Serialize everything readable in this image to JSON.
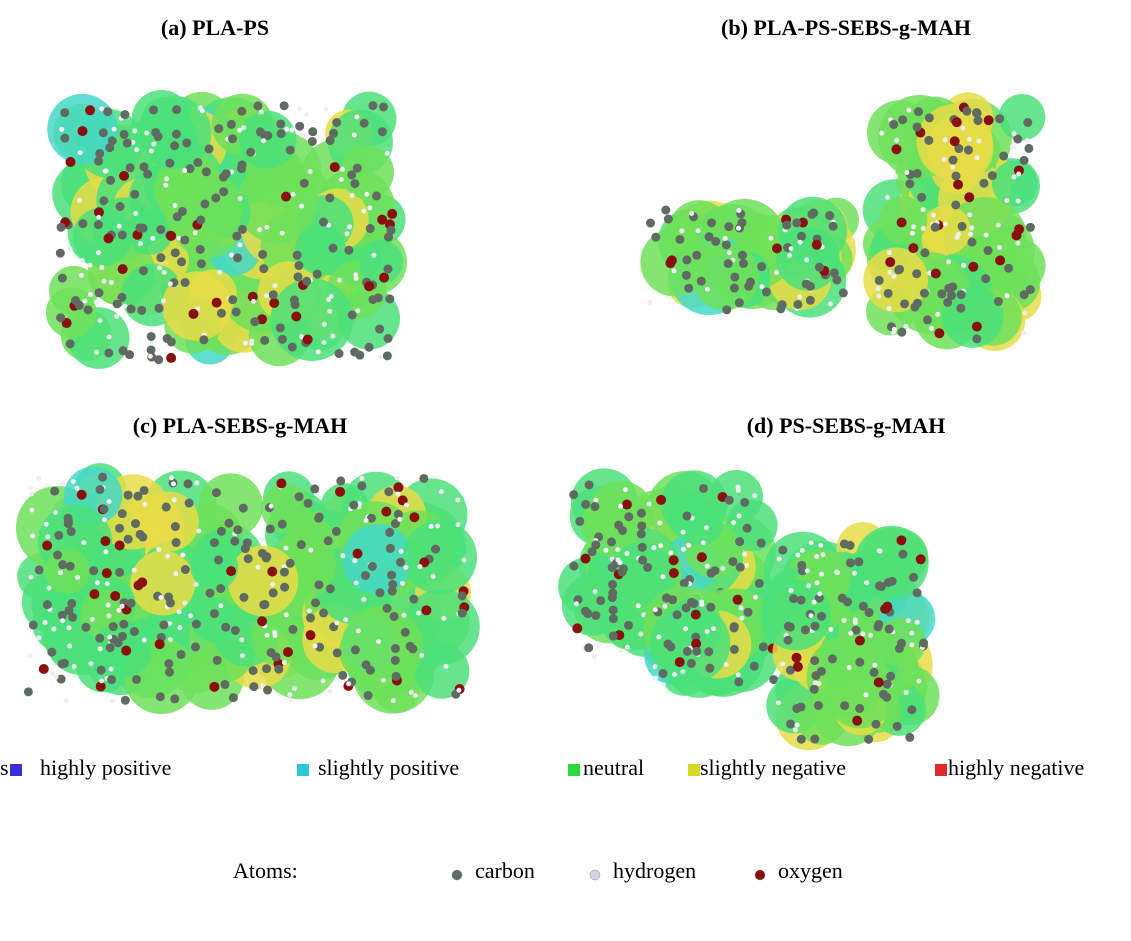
{
  "panels": [
    {
      "label": "(a) PLA-PS"
    },
    {
      "label": "(b) PLA-PS-SEBS-g-MAH"
    },
    {
      "label": "(c) PLA-SEBS-g-MAH"
    },
    {
      "label": "(d) PS-SEBS-g-MAH"
    }
  ],
  "colors": {
    "label": "s:",
    "items": [
      {
        "label": "highly positive",
        "color": "#3a2fd8"
      },
      {
        "label": "slightly positive",
        "color": "#2cc8d8"
      },
      {
        "label": "neutral",
        "color": "#2ed83a"
      },
      {
        "label": "slightly negative",
        "color": "#d8d82a"
      },
      {
        "label": "highly negative",
        "color": "#e02a2a"
      }
    ]
  },
  "atoms": {
    "label": "Atoms:",
    "items": [
      {
        "label": "carbon",
        "color": "#5f6a60"
      },
      {
        "label": "hydrogen",
        "color": "#d4d4e4"
      },
      {
        "label": "oxygen",
        "color": "#8a1010"
      }
    ]
  }
}
